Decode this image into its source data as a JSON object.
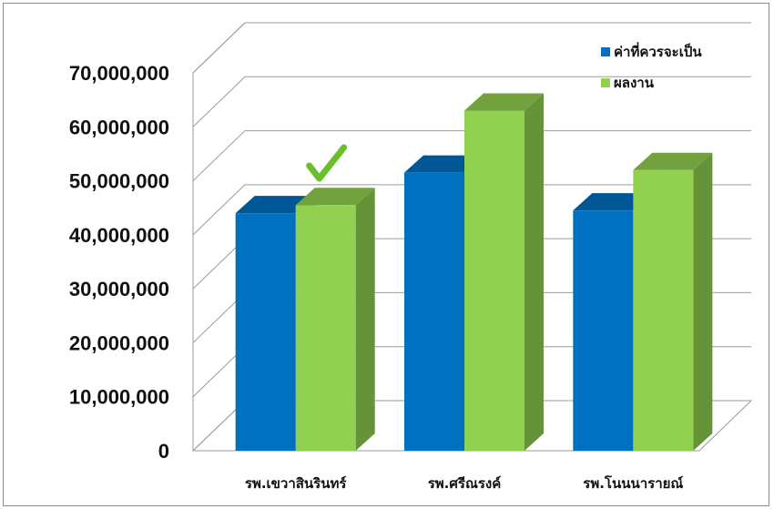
{
  "chart_data": {
    "type": "bar",
    "style": "3d-clustered-column",
    "categories": [
      "รพ.เขวาสินรินทร์",
      "รพ.ศรีณรงค์",
      "รพ.โนนนารายณ์"
    ],
    "series": [
      {
        "name": "ค่าที่ควรจะเป็น",
        "color": "#0070C0",
        "values": [
          44000000,
          51500000,
          44500000
        ]
      },
      {
        "name": "ผลงาน",
        "color": "#92D050",
        "values": [
          45500000,
          63000000,
          52000000
        ]
      }
    ],
    "y_ticks": [
      "0",
      "10,000,000",
      "20,000,000",
      "30,000,000",
      "40,000,000",
      "50,000,000",
      "60,000,000",
      "70,000,000"
    ],
    "ylim": [
      0,
      70000000
    ],
    "grid": true,
    "legend_position": "top-right",
    "annotations": [
      {
        "type": "checkmark",
        "category_index": 0,
        "color": "#6BBE2E"
      }
    ],
    "title": "",
    "xlabel": "",
    "ylabel": ""
  }
}
